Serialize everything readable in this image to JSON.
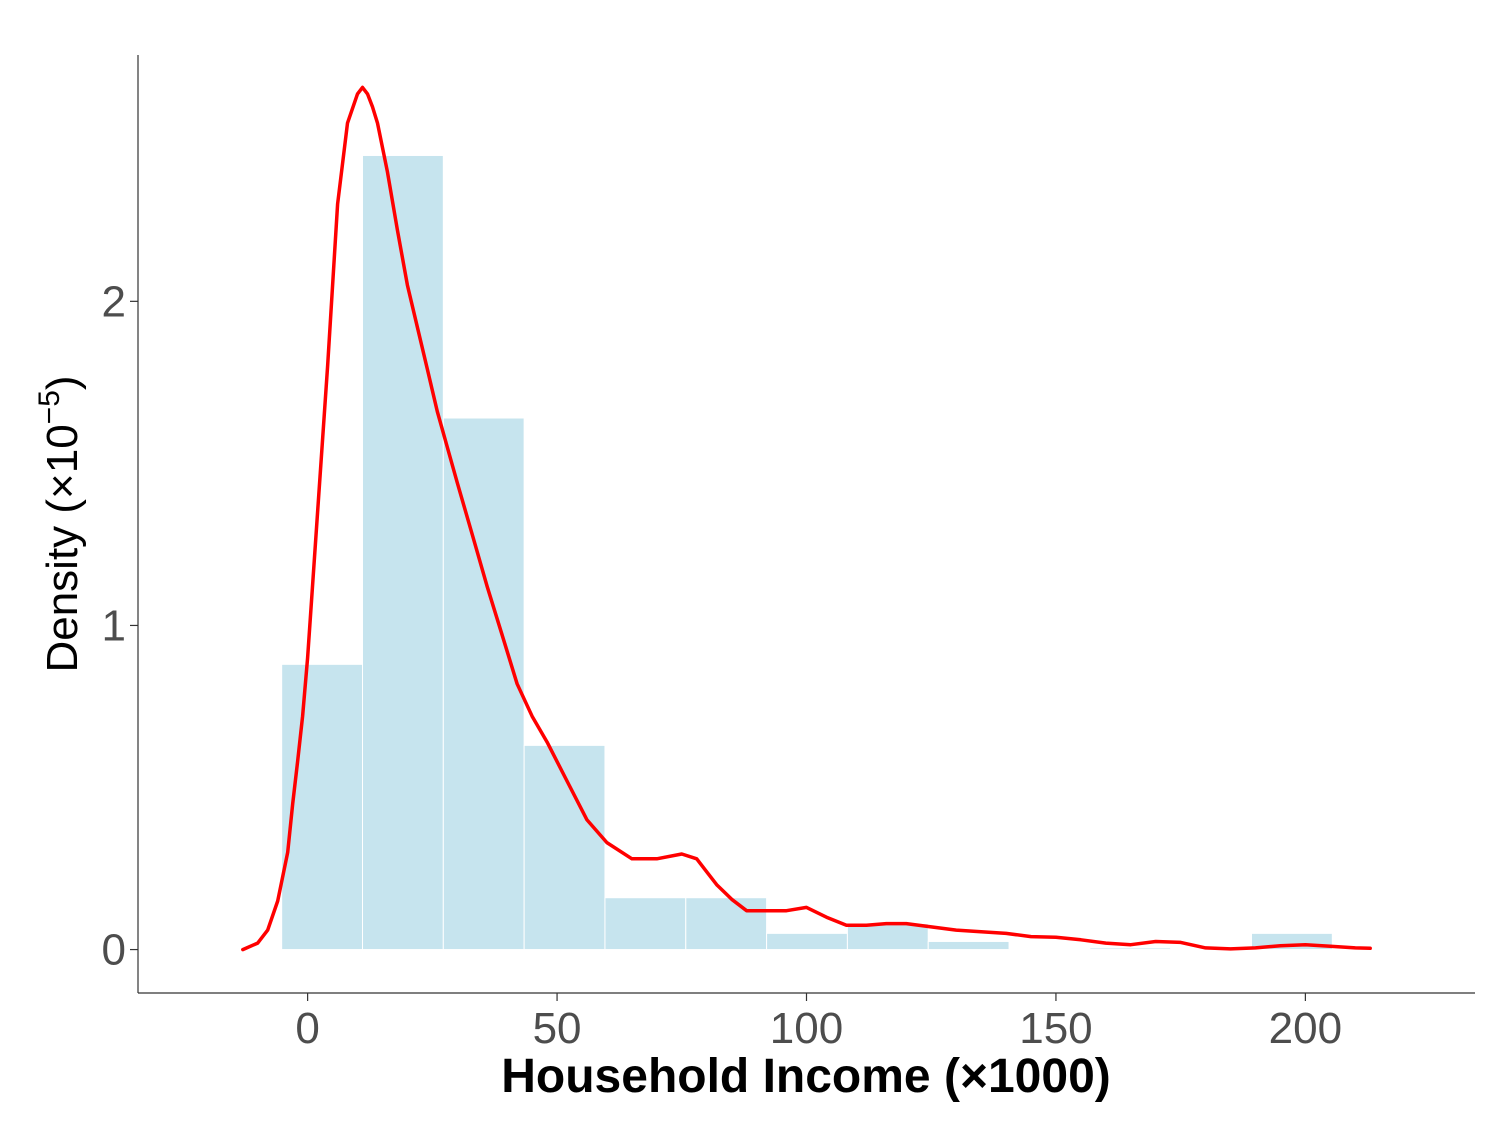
{
  "chart_data": {
    "type": "bar",
    "subtype": "histogram-with-density",
    "xlabel": "Household Income (×1000)",
    "ylabel_main": "Density (×10",
    "ylabel_exp": "−5",
    "ylabel_close": ")",
    "xlim": [
      -34,
      234
    ],
    "ylim": [
      -0.134,
      2.76
    ],
    "x_ticks": [
      {
        "value": 0,
        "label": "0"
      },
      {
        "value": 50,
        "label": "50"
      },
      {
        "value": 100,
        "label": "100"
      },
      {
        "value": 150,
        "label": "150"
      },
      {
        "value": 200,
        "label": "200"
      }
    ],
    "y_ticks": [
      {
        "value": 0,
        "label": "0"
      },
      {
        "value": 1,
        "label": "1"
      },
      {
        "value": 2,
        "label": "2"
      }
    ],
    "grid": false,
    "legend": "none",
    "colors": {
      "bar_fill": "#c6e4ee",
      "bar_edge": "#ffffff",
      "density_line": "#ff0000",
      "axis": "#333333",
      "tick_text": "#4d4d4d"
    },
    "bins": [
      {
        "start": -5.2,
        "end": 11,
        "density": 0.88
      },
      {
        "start": 11,
        "end": 27.2,
        "density": 2.45
      },
      {
        "start": 27.2,
        "end": 43.4,
        "density": 1.64
      },
      {
        "start": 43.4,
        "end": 59.6,
        "density": 0.63
      },
      {
        "start": 59.6,
        "end": 75.8,
        "density": 0.16
      },
      {
        "start": 75.8,
        "end": 92,
        "density": 0.16
      },
      {
        "start": 92,
        "end": 108.2,
        "density": 0.05
      },
      {
        "start": 108.2,
        "end": 124.4,
        "density": 0.08
      },
      {
        "start": 124.4,
        "end": 140.6,
        "density": 0.025
      },
      {
        "start": 140.6,
        "end": 156.8,
        "density": 0
      },
      {
        "start": 156.8,
        "end": 173,
        "density": 0.005
      },
      {
        "start": 173,
        "end": 189.2,
        "density": 0
      },
      {
        "start": 189.2,
        "end": 205.4,
        "density": 0.05
      }
    ],
    "density_curve": {
      "x": [
        -13,
        -10,
        -8,
        -6,
        -4,
        -3,
        -2,
        -1,
        0,
        2,
        4,
        6,
        8,
        10,
        11,
        12,
        13,
        14,
        16,
        18,
        20,
        22,
        24,
        26,
        28,
        30,
        33,
        36,
        39,
        42,
        45,
        48,
        52,
        56,
        60,
        65,
        70,
        75,
        78,
        80,
        82,
        85,
        88,
        92,
        96,
        100,
        104,
        108,
        112,
        116,
        120,
        125,
        130,
        135,
        140,
        145,
        150,
        155,
        160,
        165,
        170,
        175,
        180,
        185,
        190,
        195,
        200,
        205,
        210,
        213
      ],
      "y": [
        0,
        0.02,
        0.06,
        0.15,
        0.3,
        0.45,
        0.58,
        0.72,
        0.9,
        1.35,
        1.8,
        2.3,
        2.55,
        2.64,
        2.66,
        2.64,
        2.6,
        2.55,
        2.4,
        2.22,
        2.05,
        1.92,
        1.79,
        1.66,
        1.55,
        1.44,
        1.28,
        1.12,
        0.97,
        0.82,
        0.72,
        0.64,
        0.52,
        0.4,
        0.33,
        0.28,
        0.28,
        0.295,
        0.28,
        0.24,
        0.2,
        0.155,
        0.12,
        0.12,
        0.12,
        0.13,
        0.1,
        0.075,
        0.075,
        0.08,
        0.08,
        0.07,
        0.06,
        0.055,
        0.05,
        0.04,
        0.038,
        0.03,
        0.02,
        0.015,
        0.025,
        0.022,
        0.005,
        0.002,
        0.005,
        0.012,
        0.015,
        0.01,
        0.005,
        0.004
      ]
    }
  }
}
